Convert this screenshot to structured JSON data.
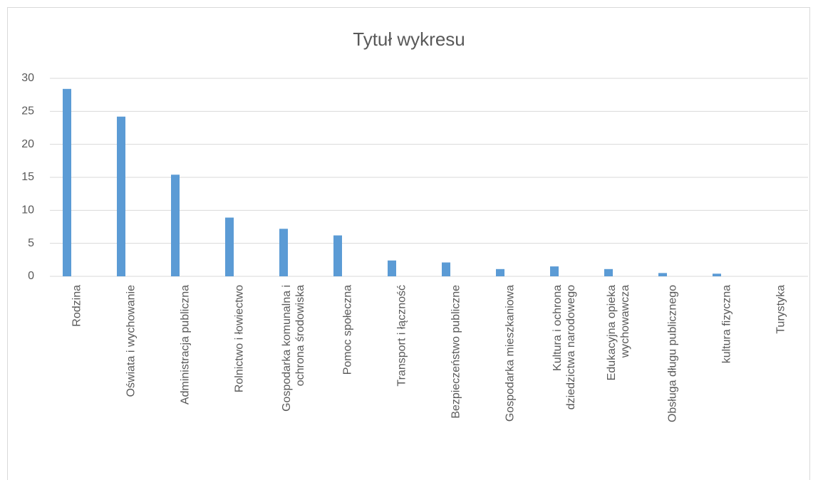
{
  "chart_data": {
    "type": "bar",
    "title": "Tytuł wykresu",
    "categories": [
      "Rodzina",
      "Oświata i wychowanie",
      "Administracja publiczna",
      "Rolnictwo i łowiectwo",
      "Gospodarka komunalna i ochrona środowiska",
      "Pomoc społeczna",
      "Transport i łączność",
      "Bezpieczeństwo publiczne",
      "Gospodarka mieszkaniowa",
      "Kultura i ochrona dziedzictwa narodowego",
      "Edukacyjna opieka wychowawcza",
      "Obsługa długu publicznego",
      "kultura fizyczna",
      "Turystyka"
    ],
    "values": [
      28.4,
      24.2,
      15.4,
      8.9,
      7.2,
      6.2,
      2.4,
      2.1,
      1.1,
      1.5,
      1.1,
      0.5,
      0.4,
      0
    ],
    "color": "#5b9bd5",
    "ylim": [
      0,
      30
    ],
    "yticks": [
      0,
      5,
      10,
      15,
      20,
      25,
      30
    ],
    "grid": true
  }
}
